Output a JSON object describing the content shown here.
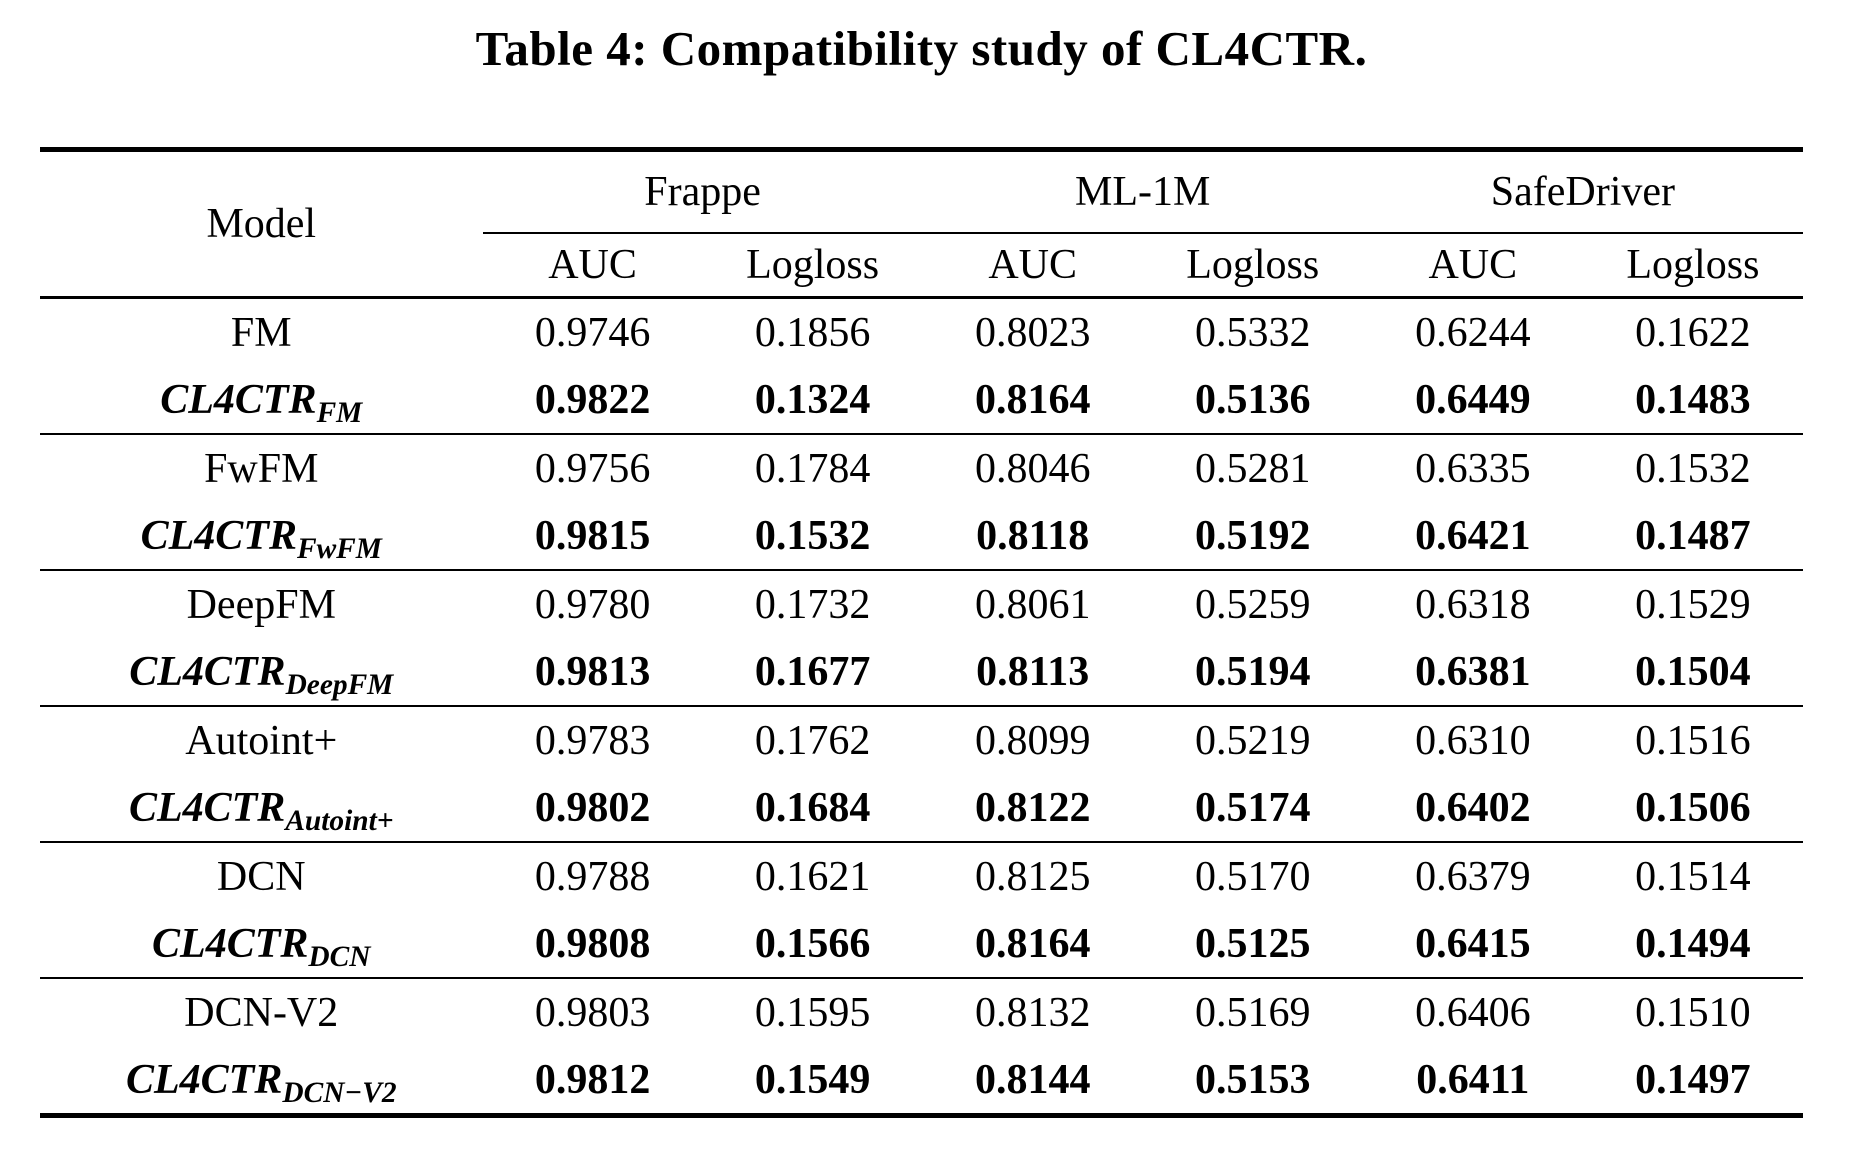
{
  "colors": {
    "text": "#000000",
    "background": "#ffffff"
  },
  "caption": "Table 4: Compatibility study of CL4CTR.",
  "table": {
    "model_header": "Model",
    "groups": [
      "Frappe",
      "ML-1M",
      "SafeDriver"
    ],
    "metrics": [
      "AUC",
      "Logloss"
    ],
    "rows": [
      {
        "model_main": "FM",
        "model_sub": "",
        "values": [
          "0.9746",
          "0.1856",
          "0.8023",
          "0.5332",
          "0.6244",
          "0.1622"
        ]
      },
      {
        "model_main": "CL4CTR",
        "model_sub": "FM",
        "values": [
          "0.9822",
          "0.1324",
          "0.8164",
          "0.5136",
          "0.6449",
          "0.1483"
        ]
      },
      {
        "model_main": "FwFM",
        "model_sub": "",
        "values": [
          "0.9756",
          "0.1784",
          "0.8046",
          "0.5281",
          "0.6335",
          "0.1532"
        ]
      },
      {
        "model_main": "CL4CTR",
        "model_sub": "FwFM",
        "values": [
          "0.9815",
          "0.1532",
          "0.8118",
          "0.5192",
          "0.6421",
          "0.1487"
        ]
      },
      {
        "model_main": "DeepFM",
        "model_sub": "",
        "values": [
          "0.9780",
          "0.1732",
          "0.8061",
          "0.5259",
          "0.6318",
          "0.1529"
        ]
      },
      {
        "model_main": "CL4CTR",
        "model_sub": "DeepFM",
        "values": [
          "0.9813",
          "0.1677",
          "0.8113",
          "0.5194",
          "0.6381",
          "0.1504"
        ]
      },
      {
        "model_main": "Autoint+",
        "model_sub": "",
        "values": [
          "0.9783",
          "0.1762",
          "0.8099",
          "0.5219",
          "0.6310",
          "0.1516"
        ]
      },
      {
        "model_main": "CL4CTR",
        "model_sub": "Autoint+",
        "values": [
          "0.9802",
          "0.1684",
          "0.8122",
          "0.5174",
          "0.6402",
          "0.1506"
        ]
      },
      {
        "model_main": "DCN",
        "model_sub": "",
        "values": [
          "0.9788",
          "0.1621",
          "0.8125",
          "0.5170",
          "0.6379",
          "0.1514"
        ]
      },
      {
        "model_main": "CL4CTR",
        "model_sub": "DCN",
        "values": [
          "0.9808",
          "0.1566",
          "0.8164",
          "0.5125",
          "0.6415",
          "0.1494"
        ]
      },
      {
        "model_main": "DCN-V2",
        "model_sub": "",
        "values": [
          "0.9803",
          "0.1595",
          "0.8132",
          "0.5169",
          "0.6406",
          "0.1510"
        ]
      },
      {
        "model_main": "CL4CTR",
        "model_sub": "DCN−V2",
        "values": [
          "0.9812",
          "0.1549",
          "0.8144",
          "0.5153",
          "0.6411",
          "0.1497"
        ]
      }
    ]
  }
}
